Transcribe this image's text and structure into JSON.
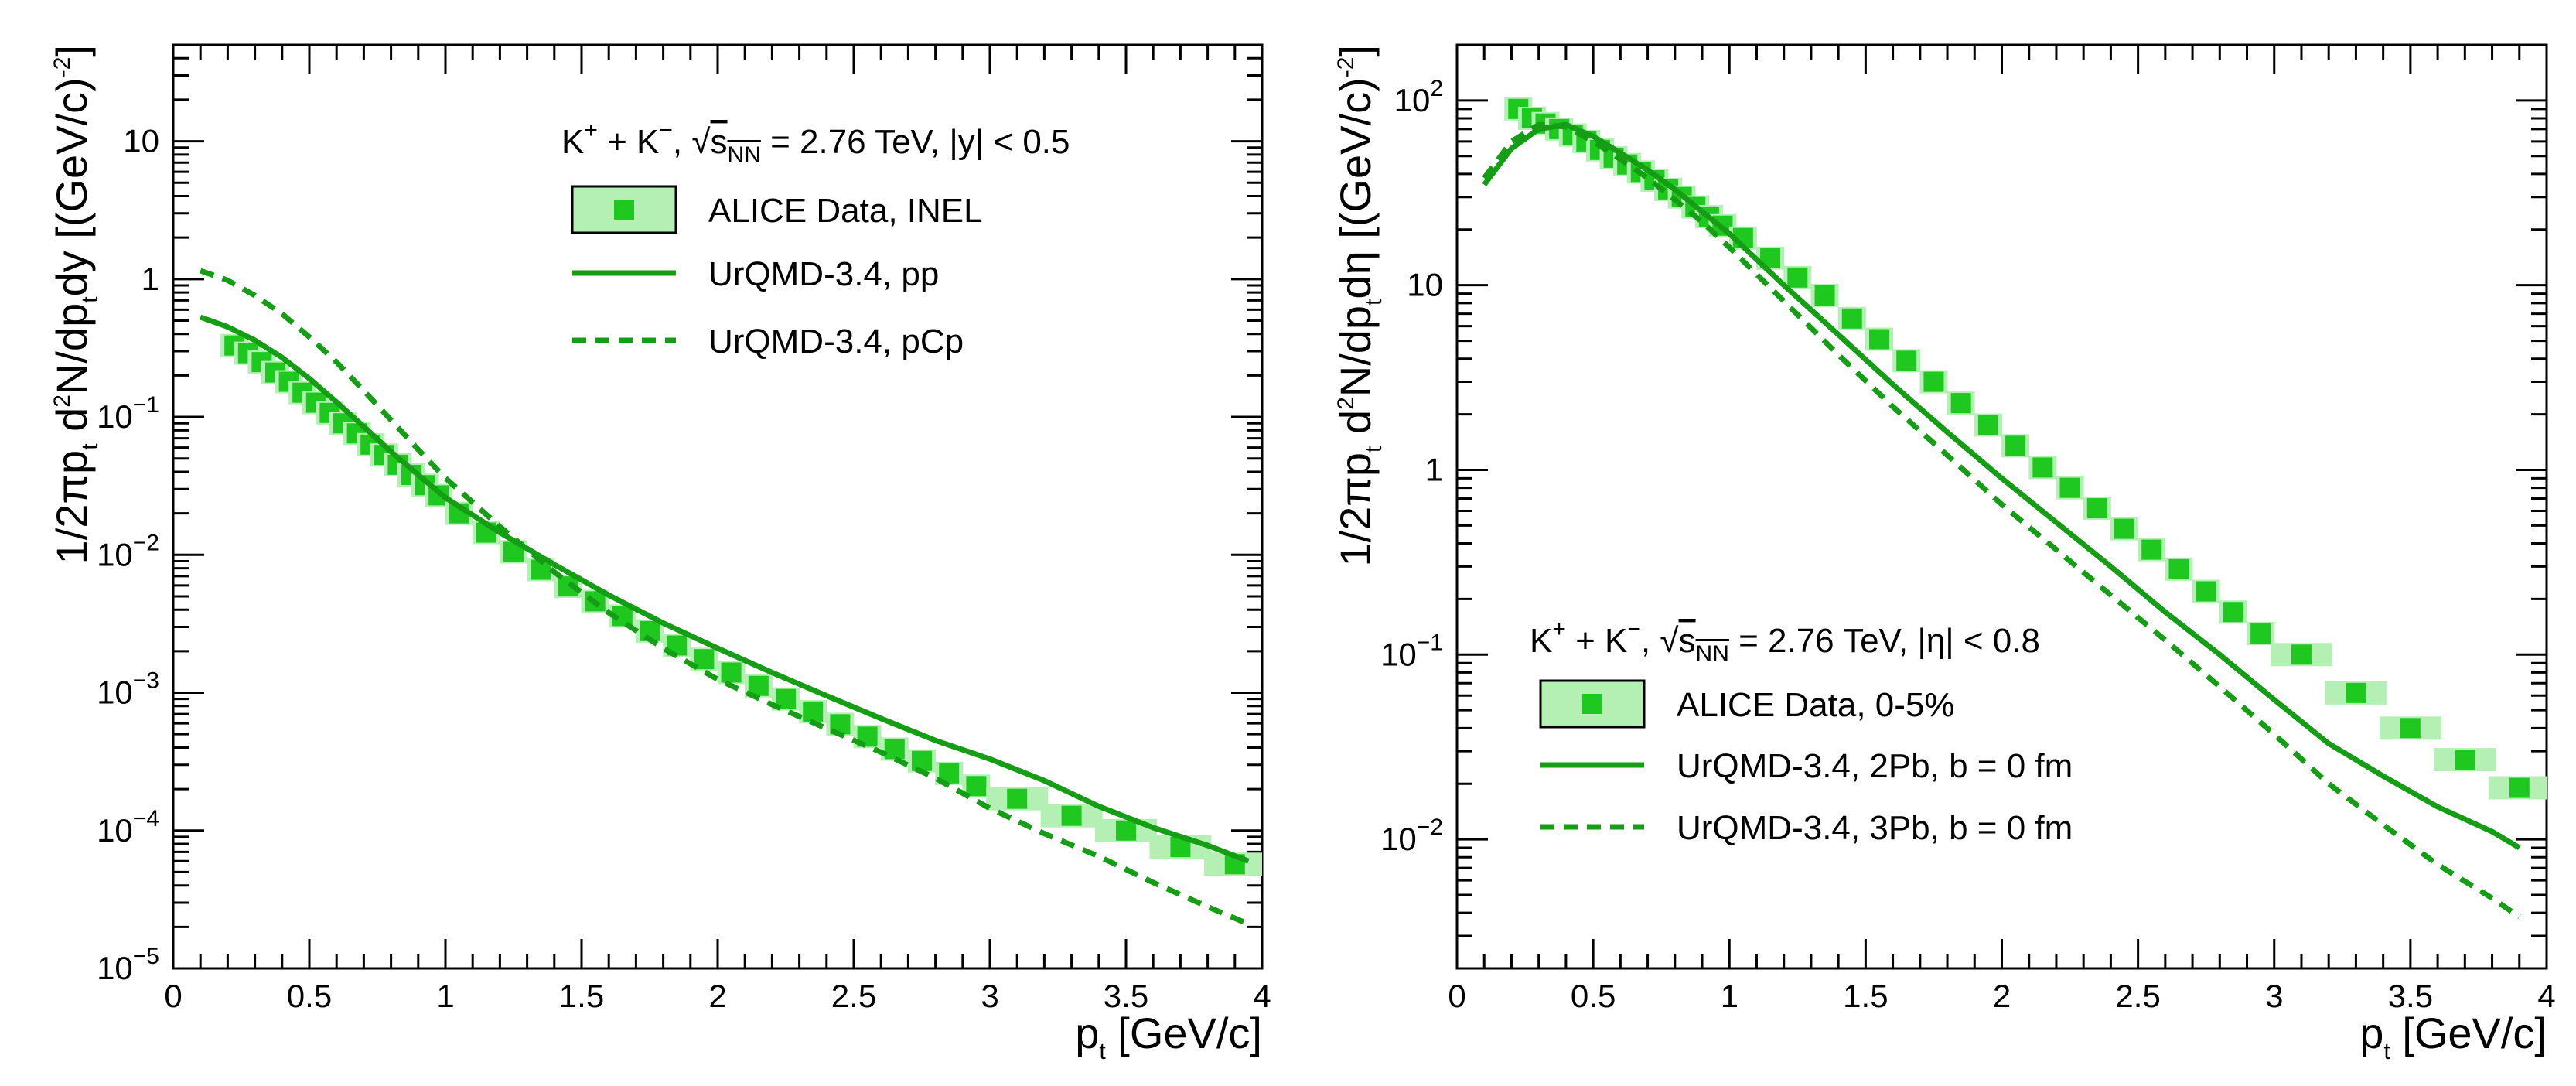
{
  "colors": {
    "data": "#1ec81e",
    "band": "#b4f0b4",
    "model": "#169d16"
  },
  "chart_data": [
    {
      "type": "scatter",
      "xlim": [
        0,
        4
      ],
      "ylim": [
        1e-05,
        50
      ],
      "ylog": true,
      "ylabel": {
        "main": "1/2πp",
        "sub1": "t",
        "mid": " d",
        "sup1": "2",
        "mid2": "N/dp",
        "sub2": "t",
        "end": "dy [(GeV/c)",
        "sup2": "-2",
        "close": "]"
      },
      "xlabel": {
        "main": "p",
        "sub": "t",
        "end": " [GeV/c]"
      },
      "xticks": [
        0,
        0.5,
        1,
        1.5,
        2,
        2.5,
        3,
        3.5,
        4
      ],
      "xtick_labels": [
        "0",
        "0.5",
        "1",
        "1.5",
        "2",
        "2.5",
        "3",
        "3.5",
        "4"
      ],
      "yticks": [
        1e-05,
        0.0001,
        0.001,
        0.01,
        0.1,
        1,
        10
      ],
      "ytick_labels": [
        {
          "base": "10",
          "exp": "−5"
        },
        {
          "base": "10",
          "exp": "−4"
        },
        {
          "base": "10",
          "exp": "−3"
        },
        {
          "base": "10",
          "exp": "−2"
        },
        {
          "base": "10",
          "exp": "−1"
        },
        {
          "base": "1",
          "exp": ""
        },
        {
          "base": "10",
          "exp": ""
        }
      ],
      "legend": {
        "header": {
          "pre": "K",
          "sup1": "+",
          "mid": " + K",
          "sup2": "−",
          "post1": ", ",
          "sqrt": "√",
          "s": "s",
          "sub": "NN",
          "post2": " = 2.76 TeV, |y| < 0.5"
        },
        "entries": [
          "ALICE Data, INEL",
          "UrQMD-3.4, pp",
          "UrQMD-3.4, pCp"
        ]
      },
      "series": [
        {
          "name": "ALICE Data, INEL",
          "style": "markers",
          "x": [
            0.225,
            0.275,
            0.325,
            0.375,
            0.425,
            0.475,
            0.525,
            0.575,
            0.625,
            0.675,
            0.725,
            0.775,
            0.825,
            0.875,
            0.925,
            0.975,
            1.05,
            1.15,
            1.25,
            1.35,
            1.45,
            1.55,
            1.65,
            1.75,
            1.85,
            1.95,
            2.05,
            2.15,
            2.25,
            2.35,
            2.45,
            2.55,
            2.65,
            2.75,
            2.85,
            2.95,
            3.1,
            3.3,
            3.5,
            3.7,
            3.9
          ],
          "y": [
            0.33,
            0.29,
            0.25,
            0.21,
            0.18,
            0.15,
            0.127,
            0.107,
            0.09,
            0.076,
            0.063,
            0.053,
            0.045,
            0.038,
            0.032,
            0.027,
            0.02,
            0.0145,
            0.0105,
            0.0078,
            0.0059,
            0.0046,
            0.0036,
            0.0028,
            0.0022,
            0.00175,
            0.0014,
            0.00112,
            0.0009,
            0.00073,
            0.00059,
            0.00048,
            0.00039,
            0.00032,
            0.00026,
            0.00021,
            0.00017,
            0.000128,
            0.0001,
            7.6e-05,
            5.7e-05
          ]
        },
        {
          "name": "UrQMD-3.4, pp",
          "style": "solid",
          "x": [
            0.1,
            0.2,
            0.3,
            0.4,
            0.5,
            0.6,
            0.7,
            0.8,
            0.9,
            1.0,
            1.2,
            1.4,
            1.6,
            1.8,
            2.0,
            2.2,
            2.4,
            2.6,
            2.8,
            3.0,
            3.2,
            3.4,
            3.6,
            3.8,
            3.95
          ],
          "y": [
            0.53,
            0.45,
            0.36,
            0.27,
            0.19,
            0.128,
            0.085,
            0.056,
            0.038,
            0.026,
            0.0145,
            0.0085,
            0.0051,
            0.0032,
            0.0021,
            0.0014,
            0.00095,
            0.00065,
            0.00045,
            0.00033,
            0.00023,
            0.00015,
            0.000105,
            7.8e-05,
            6e-05
          ]
        },
        {
          "name": "UrQMD-3.4, pCp",
          "style": "dashed",
          "x": [
            0.1,
            0.2,
            0.3,
            0.4,
            0.5,
            0.6,
            0.7,
            0.8,
            0.9,
            1.0,
            1.2,
            1.4,
            1.6,
            1.8,
            2.0,
            2.2,
            2.4,
            2.6,
            2.8,
            3.0,
            3.2,
            3.4,
            3.6,
            3.8,
            3.95
          ],
          "y": [
            1.15,
            0.98,
            0.76,
            0.56,
            0.38,
            0.25,
            0.155,
            0.095,
            0.058,
            0.036,
            0.016,
            0.0075,
            0.0038,
            0.0021,
            0.00125,
            0.00082,
            0.00055,
            0.00037,
            0.00024,
            0.000145,
            9.5e-05,
            6.5e-05,
            4.2e-05,
            2.8e-05,
            2.1e-05
          ]
        }
      ]
    },
    {
      "type": "scatter",
      "xlim": [
        0,
        4
      ],
      "ylim": [
        0.002,
        200
      ],
      "ylog": true,
      "ylabel": {
        "main": "1/2πp",
        "sub1": "t",
        "mid": " d",
        "sup1": "2",
        "mid2": "N/dp",
        "sub2": "t",
        "end": "dη [(GeV/c)",
        "sup2": "-2",
        "close": "]"
      },
      "xlabel": {
        "main": "p",
        "sub": "t",
        "end": " [GeV/c]"
      },
      "xticks": [
        0,
        0.5,
        1,
        1.5,
        2,
        2.5,
        3,
        3.5,
        4
      ],
      "xtick_labels": [
        "0",
        "0.5",
        "1",
        "1.5",
        "2",
        "2.5",
        "3",
        "3.5",
        "4"
      ],
      "yticks": [
        0.01,
        0.1,
        1,
        10,
        100
      ],
      "ytick_labels": [
        {
          "base": "10",
          "exp": "−2"
        },
        {
          "base": "10",
          "exp": "−1"
        },
        {
          "base": "1",
          "exp": ""
        },
        {
          "base": "10",
          "exp": ""
        },
        {
          "base": "10",
          "exp": "2"
        }
      ],
      "legend": {
        "header": {
          "pre": "K",
          "sup1": "+",
          "mid": " + K",
          "sup2": "−",
          "post1": ", ",
          "sqrt": "√",
          "s": "s",
          "sub": "NN",
          "post2": " = 2.76 TeV, |η| < 0.8"
        },
        "entries": [
          "ALICE Data, 0-5%",
          "UrQMD-3.4, 2Pb, b = 0 fm",
          "UrQMD-3.4, 3Pb, b = 0 fm"
        ]
      },
      "series": [
        {
          "name": "ALICE Data, 0-5%",
          "style": "markers",
          "x": [
            0.225,
            0.275,
            0.325,
            0.375,
            0.425,
            0.475,
            0.525,
            0.575,
            0.625,
            0.675,
            0.725,
            0.775,
            0.825,
            0.875,
            0.925,
            0.975,
            1.05,
            1.15,
            1.25,
            1.35,
            1.45,
            1.55,
            1.65,
            1.75,
            1.85,
            1.95,
            2.05,
            2.15,
            2.25,
            2.35,
            2.45,
            2.55,
            2.65,
            2.75,
            2.85,
            2.95,
            3.1,
            3.3,
            3.5,
            3.7,
            3.9
          ],
          "y": [
            90,
            80,
            75,
            70,
            65,
            60,
            54,
            49,
            45,
            41,
            37,
            33,
            30,
            26.5,
            23.5,
            21,
            18,
            14,
            11,
            8.8,
            6.6,
            5.1,
            3.9,
            3.0,
            2.3,
            1.75,
            1.35,
            1.03,
            0.8,
            0.62,
            0.48,
            0.37,
            0.29,
            0.22,
            0.17,
            0.13,
            0.1,
            0.062,
            0.04,
            0.027,
            0.019
          ]
        },
        {
          "name": "UrQMD-3.4, 2Pb, b = 0 fm",
          "style": "solid",
          "x": [
            0.1,
            0.2,
            0.3,
            0.4,
            0.5,
            0.6,
            0.7,
            0.8,
            0.9,
            1.0,
            1.2,
            1.4,
            1.6,
            1.8,
            2.0,
            2.2,
            2.4,
            2.6,
            2.8,
            3.0,
            3.2,
            3.4,
            3.6,
            3.8,
            3.9
          ],
          "y": [
            35,
            55,
            70,
            74,
            64,
            52,
            42,
            33,
            25,
            19,
            10,
            5.4,
            2.9,
            1.6,
            0.9,
            0.52,
            0.3,
            0.17,
            0.1,
            0.057,
            0.033,
            0.022,
            0.015,
            0.011,
            0.009
          ]
        },
        {
          "name": "UrQMD-3.4, 3Pb, b = 0 fm",
          "style": "dashed",
          "x": [
            0.1,
            0.2,
            0.3,
            0.4,
            0.5,
            0.6,
            0.7,
            0.8,
            0.9,
            1.0,
            1.2,
            1.4,
            1.6,
            1.8,
            2.0,
            2.2,
            2.4,
            2.6,
            2.8,
            3.0,
            3.2,
            3.4,
            3.6,
            3.8,
            3.9
          ],
          "y": [
            38,
            60,
            74,
            72,
            60,
            48,
            38,
            29,
            22,
            16,
            8.2,
            4.2,
            2.2,
            1.2,
            0.65,
            0.37,
            0.21,
            0.12,
            0.067,
            0.037,
            0.02,
            0.012,
            0.0073,
            0.0048,
            0.0038
          ]
        }
      ]
    }
  ]
}
